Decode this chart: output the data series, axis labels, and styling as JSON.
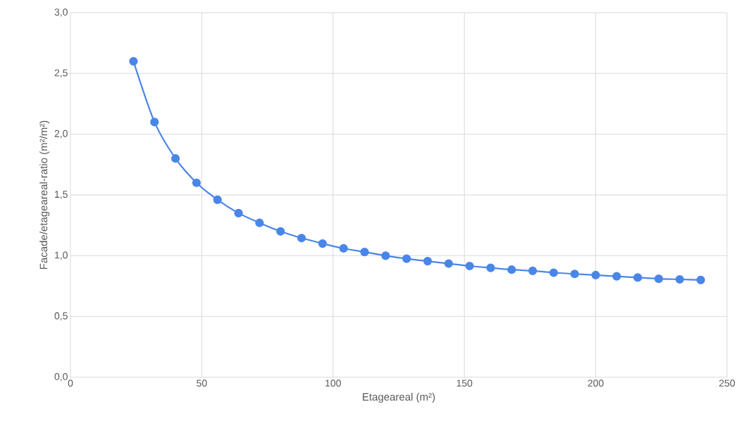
{
  "chart_data": {
    "type": "line",
    "xlabel": "Etageareal (m²)",
    "ylabel": "Facade/etageareal-ratio (m²/m²)",
    "x": [
      24,
      32,
      40,
      48,
      56,
      64,
      72,
      80,
      88,
      96,
      104,
      112,
      120,
      128,
      136,
      144,
      152,
      160,
      168,
      176,
      184,
      192,
      200,
      208,
      216,
      224,
      232,
      240
    ],
    "series": [
      {
        "color": "#4a86e8",
        "values": [
          2.6,
          2.1,
          1.8,
          1.6,
          1.46,
          1.35,
          1.27,
          1.2,
          1.145,
          1.1,
          1.06,
          1.03,
          1.0,
          0.975,
          0.955,
          0.935,
          0.915,
          0.9,
          0.885,
          0.875,
          0.86,
          0.85,
          0.84,
          0.83,
          0.82,
          0.81,
          0.805,
          0.8
        ]
      }
    ],
    "xlim": [
      0,
      250
    ],
    "xticks": [
      0,
      50,
      100,
      150,
      200,
      250
    ],
    "ylim": [
      0,
      3
    ],
    "yticks": [
      {
        "value": 0,
        "label": "0,0"
      },
      {
        "value": 0.5,
        "label": "0,5"
      },
      {
        "value": 1,
        "label": "1,0"
      },
      {
        "value": 1.5,
        "label": "1,5"
      },
      {
        "value": 2,
        "label": "2,0"
      },
      {
        "value": 2.5,
        "label": "2,5"
      },
      {
        "value": 3,
        "label": "3,0"
      }
    ],
    "grid": true,
    "marker": "circle",
    "line_style": "solid"
  }
}
